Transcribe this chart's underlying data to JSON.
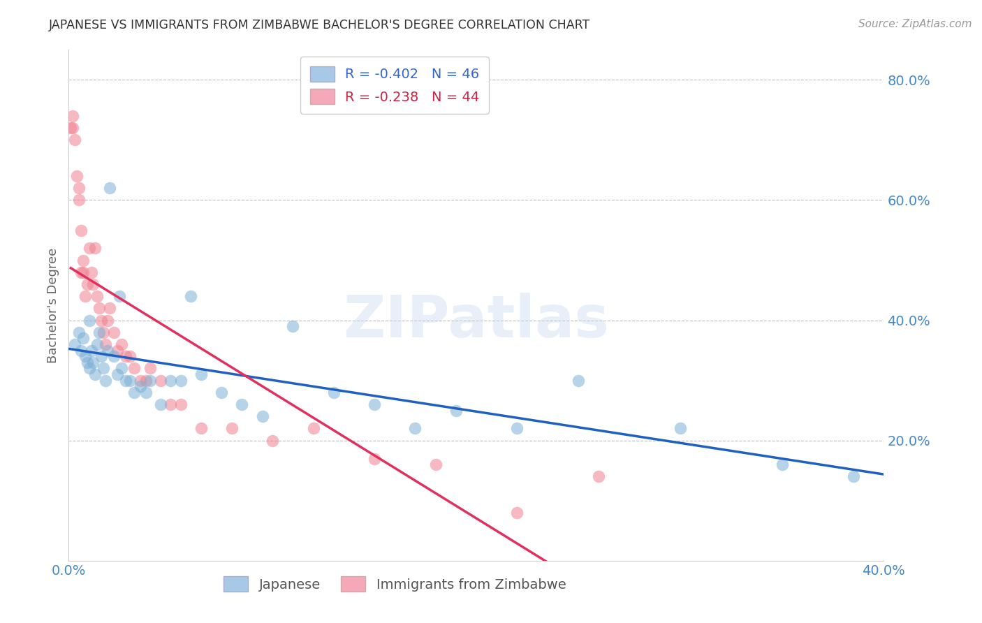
{
  "title": "JAPANESE VS IMMIGRANTS FROM ZIMBABWE BACHELOR'S DEGREE CORRELATION CHART",
  "source": "Source: ZipAtlas.com",
  "ylabel": "Bachelor's Degree",
  "xlim": [
    0.0,
    0.4
  ],
  "ylim": [
    0.0,
    0.85
  ],
  "x_ticks": [
    0.0,
    0.1,
    0.2,
    0.3,
    0.4
  ],
  "x_tick_labels": [
    "0.0%",
    "",
    "",
    "",
    "40.0%"
  ],
  "y_ticks": [
    0.2,
    0.4,
    0.6,
    0.8
  ],
  "y_tick_labels": [
    "20.0%",
    "40.0%",
    "60.0%",
    "80.0%"
  ],
  "japanese_x": [
    0.003,
    0.005,
    0.006,
    0.007,
    0.008,
    0.009,
    0.01,
    0.01,
    0.011,
    0.012,
    0.013,
    0.014,
    0.015,
    0.016,
    0.017,
    0.018,
    0.019,
    0.02,
    0.022,
    0.024,
    0.025,
    0.026,
    0.028,
    0.03,
    0.032,
    0.035,
    0.038,
    0.04,
    0.045,
    0.05,
    0.055,
    0.06,
    0.065,
    0.075,
    0.085,
    0.095,
    0.11,
    0.13,
    0.15,
    0.17,
    0.19,
    0.22,
    0.25,
    0.3,
    0.35,
    0.385
  ],
  "japanese_y": [
    0.36,
    0.38,
    0.35,
    0.37,
    0.34,
    0.33,
    0.32,
    0.4,
    0.35,
    0.33,
    0.31,
    0.36,
    0.38,
    0.34,
    0.32,
    0.3,
    0.35,
    0.62,
    0.34,
    0.31,
    0.44,
    0.32,
    0.3,
    0.3,
    0.28,
    0.29,
    0.28,
    0.3,
    0.26,
    0.3,
    0.3,
    0.44,
    0.31,
    0.28,
    0.26,
    0.24,
    0.39,
    0.28,
    0.26,
    0.22,
    0.25,
    0.22,
    0.3,
    0.22,
    0.16,
    0.14
  ],
  "zimbabwe_x": [
    0.001,
    0.002,
    0.002,
    0.003,
    0.004,
    0.005,
    0.005,
    0.006,
    0.006,
    0.007,
    0.007,
    0.008,
    0.009,
    0.01,
    0.011,
    0.012,
    0.013,
    0.014,
    0.015,
    0.016,
    0.017,
    0.018,
    0.019,
    0.02,
    0.022,
    0.024,
    0.026,
    0.028,
    0.03,
    0.032,
    0.035,
    0.038,
    0.04,
    0.045,
    0.05,
    0.055,
    0.065,
    0.08,
    0.1,
    0.12,
    0.15,
    0.18,
    0.22,
    0.26
  ],
  "zimbabwe_y": [
    0.72,
    0.74,
    0.72,
    0.7,
    0.64,
    0.6,
    0.62,
    0.55,
    0.48,
    0.48,
    0.5,
    0.44,
    0.46,
    0.52,
    0.48,
    0.46,
    0.52,
    0.44,
    0.42,
    0.4,
    0.38,
    0.36,
    0.4,
    0.42,
    0.38,
    0.35,
    0.36,
    0.34,
    0.34,
    0.32,
    0.3,
    0.3,
    0.32,
    0.3,
    0.26,
    0.26,
    0.22,
    0.22,
    0.2,
    0.22,
    0.17,
    0.16,
    0.08,
    0.14
  ],
  "japanese_R": -0.402,
  "japanese_N": 46,
  "zimbabwe_R": -0.238,
  "zimbabwe_N": 44,
  "blue_dot_color": "#7bafd4",
  "pink_dot_color": "#f08090",
  "blue_line_color": "#2060c0",
  "pink_line_color": "#e03060",
  "blue_legend_color": "#a8c8e8",
  "pink_legend_color": "#f4a8b8",
  "background_color": "#ffffff",
  "grid_color": "#bbbbbb",
  "title_color": "#333333",
  "axis_color": "#4488cc",
  "watermark_text": "ZIPatlas",
  "watermark_color": "#c8d8f0"
}
